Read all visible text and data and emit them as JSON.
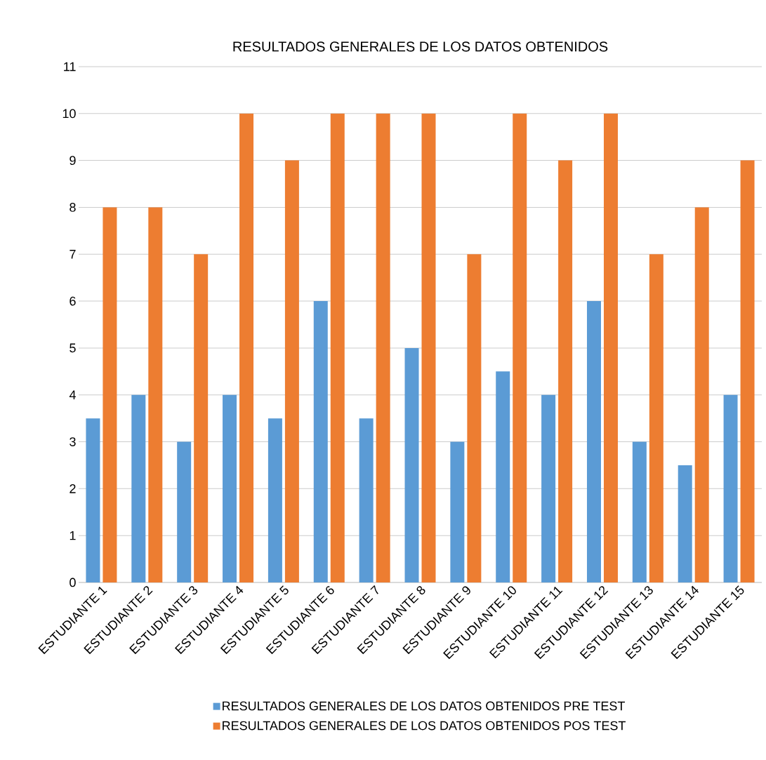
{
  "chart_data": {
    "type": "bar",
    "title": "RESULTADOS GENERALES DE LOS DATOS OBTENIDOS",
    "categories": [
      "ESTUDIANTE 1",
      "ESTUDIANTE 2",
      "ESTUDIANTE 3",
      "ESTUDIANTE 4",
      "ESTUDIANTE 5",
      "ESTUDIANTE 6",
      "ESTUDIANTE 7",
      "ESTUDIANTE 8",
      "ESTUDIANTE 9",
      "ESTUDIANTE 10",
      "ESTUDIANTE 11",
      "ESTUDIANTE 12",
      "ESTUDIANTE 13",
      "ESTUDIANTE 14",
      "ESTUDIANTE 15"
    ],
    "series": [
      {
        "name": "RESULTADOS GENERALES DE LOS DATOS OBTENIDOS PRE TEST",
        "color": "#5b9bd5",
        "values": [
          3.5,
          4,
          3,
          4,
          3.5,
          6,
          3.5,
          5,
          3,
          4.5,
          4,
          6,
          3,
          2.5,
          4
        ]
      },
      {
        "name": "RESULTADOS GENERALES DE LOS DATOS OBTENIDOS POS TEST",
        "color": "#ed7d31",
        "values": [
          8,
          8,
          7,
          10,
          9,
          10,
          10,
          10,
          7,
          10,
          9,
          10,
          7,
          8,
          9
        ]
      }
    ],
    "ylim": [
      0,
      11
    ],
    "yticks": [
      0,
      1,
      2,
      3,
      4,
      5,
      6,
      7,
      8,
      9,
      10,
      11
    ],
    "grid": "y",
    "legend": "bottom"
  }
}
